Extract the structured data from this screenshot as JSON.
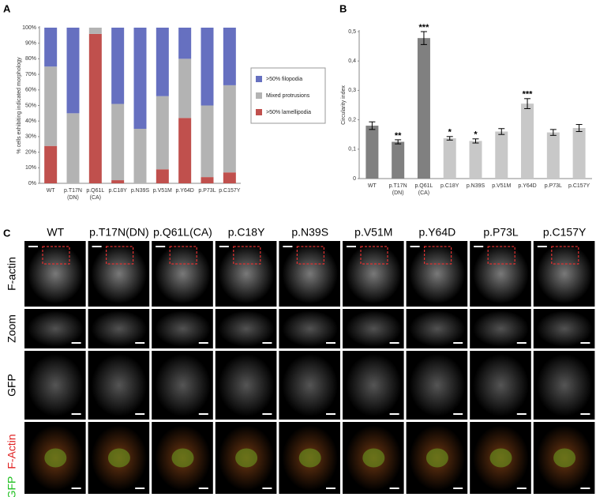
{
  "panel_labels": [
    "A",
    "B",
    "C"
  ],
  "chart_data": [
    {
      "type": "stacked_bar",
      "ylabel": "% cells exhibiting indicated morphology",
      "categories": [
        "WT",
        "p.T17N (DN)",
        "p.Q61L (CA)",
        "p.C18Y",
        "p.N39S",
        "p.V51M",
        "p.Y64D",
        "p.P73L",
        "p.C157Y"
      ],
      "series": [
        {
          "name": ">50% lamellipodia",
          "color": "#c0504d",
          "values": [
            24,
            0,
            96,
            2,
            0,
            9,
            42,
            4,
            7
          ]
        },
        {
          "name": "Mixed protrusions",
          "color": "#b3b3b3",
          "values": [
            51,
            45,
            4,
            49,
            35,
            47,
            38,
            46,
            56
          ]
        },
        {
          "name": ">50% filopodia",
          "color": "#6670c0",
          "values": [
            25,
            55,
            0,
            49,
            65,
            44,
            20,
            50,
            37
          ]
        }
      ],
      "ylim": [
        0,
        100
      ],
      "yticks": [
        {
          "value": 0,
          "label": "0%"
        },
        {
          "value": 10,
          "label": "10%"
        },
        {
          "value": 20,
          "label": "20%"
        },
        {
          "value": 30,
          "label": "30%"
        },
        {
          "value": 40,
          "label": "40%"
        },
        {
          "value": 50,
          "label": "50%"
        },
        {
          "value": 60,
          "label": "60%"
        },
        {
          "value": 70,
          "label": "70%"
        },
        {
          "value": 80,
          "label": "80%"
        },
        {
          "value": 90,
          "label": "90%"
        },
        {
          "value": 100,
          "label": "100%"
        }
      ],
      "legend": "right"
    },
    {
      "type": "bar_error",
      "ylabel": "Circularity index",
      "categories": [
        "WT",
        "p.T17N (DN)",
        "p.Q61L (CA)",
        "p.C18Y",
        "p.N39S",
        "p.V51M",
        "p.Y64D",
        "p.P73L",
        "p.C157Y"
      ],
      "values": [
        0.18,
        0.125,
        0.478,
        0.137,
        0.128,
        0.16,
        0.255,
        0.157,
        0.172
      ],
      "errors": [
        0.013,
        0.007,
        0.022,
        0.006,
        0.007,
        0.01,
        0.017,
        0.01,
        0.012
      ],
      "colors": [
        "#808080",
        "#808080",
        "#808080",
        "#c8c8c8",
        "#c8c8c8",
        "#c8c8c8",
        "#c8c8c8",
        "#c8c8c8",
        "#c8c8c8"
      ],
      "significance": [
        null,
        "**",
        "***",
        "*",
        "*",
        null,
        "***",
        null,
        null
      ],
      "ylim": [
        0,
        0.5
      ],
      "yticks": [
        0,
        {
          "value": 0.1,
          "label": "0,1"
        },
        {
          "value": 0.2,
          "label": "0,2"
        },
        {
          "value": 0.3,
          "label": "0,3"
        },
        {
          "value": 0.4,
          "label": "0,4"
        },
        {
          "value": 0.5,
          "label": "0,5"
        }
      ]
    }
  ],
  "panel_c": {
    "columns": [
      "WT",
      "p.T17N(DN)",
      "p.Q61L(CA)",
      "p.C18Y",
      "p.N39S",
      "p.V51M",
      "p.Y64D",
      "p.P73L",
      "p.C157Y"
    ],
    "rows": [
      "F-actin",
      "Zoom",
      "GFP"
    ],
    "merge_labels": [
      "F-Actin",
      "GFP"
    ]
  }
}
